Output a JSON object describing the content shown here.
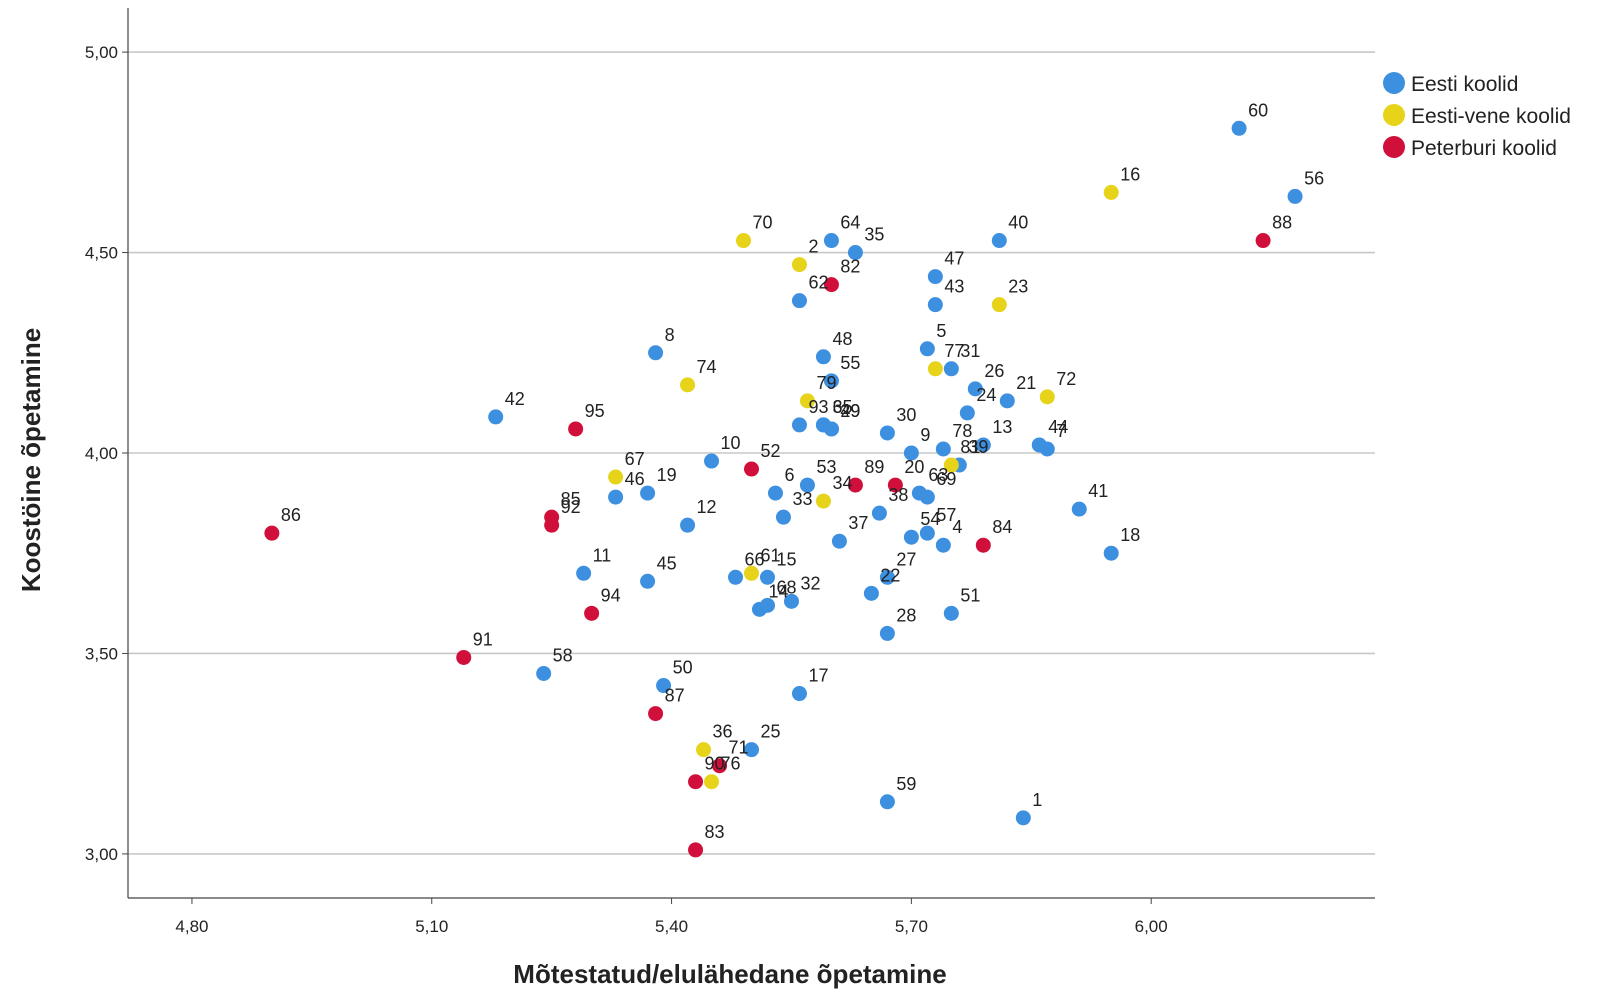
{
  "chart_data": {
    "type": "scatter",
    "xlabel": "Mõtestatud/elulähedane õpetamine",
    "ylabel": "Koostöine õpetamine",
    "xlim": [
      4.72,
      6.28
    ],
    "ylim": [
      2.89,
      5.11
    ],
    "x_ticks": [
      4.8,
      5.1,
      5.4,
      5.7,
      6.0
    ],
    "x_tick_labels": [
      "4,80",
      "5,10",
      "5,40",
      "5,70",
      "6,00"
    ],
    "y_ticks": [
      3.0,
      3.5,
      4.0,
      4.5,
      5.0
    ],
    "y_tick_labels": [
      "3,00",
      "3,50",
      "4,00",
      "4,50",
      "5,00"
    ],
    "grid": "horizontal",
    "legend_position": "top-right",
    "series": [
      {
        "name": "Eesti koolid",
        "color": "#3d8fe0",
        "points": [
          {
            "label": "1",
            "x": 5.84,
            "y": 3.09
          },
          {
            "label": "3",
            "x": 5.59,
            "y": 4.07
          },
          {
            "label": "4",
            "x": 5.74,
            "y": 3.77
          },
          {
            "label": "5",
            "x": 5.72,
            "y": 4.26
          },
          {
            "label": "6",
            "x": 5.53,
            "y": 3.9
          },
          {
            "label": "7",
            "x": 5.87,
            "y": 4.01
          },
          {
            "label": "8",
            "x": 5.38,
            "y": 4.25
          },
          {
            "label": "9",
            "x": 5.7,
            "y": 4.0
          },
          {
            "label": "10",
            "x": 5.45,
            "y": 3.98
          },
          {
            "label": "11",
            "x": 5.29,
            "y": 3.7
          },
          {
            "label": "12",
            "x": 5.42,
            "y": 3.82
          },
          {
            "label": "13",
            "x": 5.79,
            "y": 4.02
          },
          {
            "label": "14",
            "x": 5.51,
            "y": 3.61
          },
          {
            "label": "15",
            "x": 5.52,
            "y": 3.69
          },
          {
            "label": "17",
            "x": 5.56,
            "y": 3.4
          },
          {
            "label": "18",
            "x": 5.95,
            "y": 3.75
          },
          {
            "label": "19",
            "x": 5.37,
            "y": 3.9
          },
          {
            "label": "21",
            "x": 5.82,
            "y": 4.13
          },
          {
            "label": "22",
            "x": 5.65,
            "y": 3.65
          },
          {
            "label": "24",
            "x": 5.77,
            "y": 4.1
          },
          {
            "label": "25",
            "x": 5.5,
            "y": 3.26
          },
          {
            "label": "26",
            "x": 5.78,
            "y": 4.16
          },
          {
            "label": "27",
            "x": 5.67,
            "y": 3.69
          },
          {
            "label": "28",
            "x": 5.67,
            "y": 3.55
          },
          {
            "label": "29",
            "x": 5.6,
            "y": 4.06
          },
          {
            "label": "30",
            "x": 5.67,
            "y": 4.05
          },
          {
            "label": "31",
            "x": 5.75,
            "y": 4.21
          },
          {
            "label": "32",
            "x": 5.55,
            "y": 3.63
          },
          {
            "label": "33",
            "x": 5.54,
            "y": 3.84
          },
          {
            "label": "35",
            "x": 5.63,
            "y": 4.5
          },
          {
            "label": "37",
            "x": 5.61,
            "y": 3.78
          },
          {
            "label": "38",
            "x": 5.66,
            "y": 3.85
          },
          {
            "label": "39",
            "x": 5.76,
            "y": 3.97
          },
          {
            "label": "40",
            "x": 5.81,
            "y": 4.53
          },
          {
            "label": "41",
            "x": 5.91,
            "y": 3.86
          },
          {
            "label": "43",
            "x": 5.73,
            "y": 4.37
          },
          {
            "label": "44",
            "x": 5.86,
            "y": 4.02
          },
          {
            "label": "45",
            "x": 5.37,
            "y": 3.68
          },
          {
            "label": "46",
            "x": 5.33,
            "y": 3.89
          },
          {
            "label": "47",
            "x": 5.73,
            "y": 4.44
          },
          {
            "label": "48",
            "x": 5.59,
            "y": 4.24
          },
          {
            "label": "50",
            "x": 5.39,
            "y": 3.42
          },
          {
            "label": "51",
            "x": 5.75,
            "y": 3.6
          },
          {
            "label": "53",
            "x": 5.57,
            "y": 3.92
          },
          {
            "label": "54",
            "x": 5.7,
            "y": 3.79
          },
          {
            "label": "55",
            "x": 5.6,
            "y": 4.18
          },
          {
            "label": "56",
            "x": 6.18,
            "y": 4.64
          },
          {
            "label": "57",
            "x": 5.72,
            "y": 3.8
          },
          {
            "label": "58",
            "x": 5.24,
            "y": 3.45
          },
          {
            "label": "59",
            "x": 5.67,
            "y": 3.13
          },
          {
            "label": "60",
            "x": 6.11,
            "y": 4.81
          },
          {
            "label": "62",
            "x": 5.56,
            "y": 4.38
          },
          {
            "label": "63",
            "x": 5.71,
            "y": 3.9
          },
          {
            "label": "64",
            "x": 5.6,
            "y": 4.53
          },
          {
            "label": "65",
            "x": 5.59,
            "y": 4.07
          },
          {
            "label": "66",
            "x": 5.48,
            "y": 3.69
          },
          {
            "label": "68",
            "x": 5.52,
            "y": 3.62
          },
          {
            "label": "69",
            "x": 5.72,
            "y": 3.89
          },
          {
            "label": "78",
            "x": 5.74,
            "y": 4.01
          },
          {
            "label": "93",
            "x": 5.56,
            "y": 4.07
          }
        ]
      },
      {
        "name": "Eesti-vene koolid",
        "color": "#e6d31a",
        "points": [
          {
            "label": "2",
            "x": 5.56,
            "y": 4.47
          },
          {
            "label": "16",
            "x": 5.95,
            "y": 4.65
          },
          {
            "label": "23",
            "x": 5.81,
            "y": 4.37
          },
          {
            "label": "34",
            "x": 5.59,
            "y": 3.88
          },
          {
            "label": "36",
            "x": 5.44,
            "y": 3.26
          },
          {
            "label": "61",
            "x": 5.5,
            "y": 3.7
          },
          {
            "label": "67",
            "x": 5.33,
            "y": 3.94
          },
          {
            "label": "70",
            "x": 5.49,
            "y": 4.53
          },
          {
            "label": "72",
            "x": 5.87,
            "y": 4.14
          },
          {
            "label": "74",
            "x": 5.42,
            "y": 4.17
          },
          {
            "label": "76",
            "x": 5.45,
            "y": 3.18
          },
          {
            "label": "77",
            "x": 5.73,
            "y": 4.21
          },
          {
            "label": "79",
            "x": 5.57,
            "y": 4.13
          },
          {
            "label": "81",
            "x": 5.75,
            "y": 3.97
          }
        ]
      },
      {
        "name": "Peterburi koolid",
        "color": "#d0103a",
        "points": [
          {
            "label": "20",
            "x": 5.68,
            "y": 3.92
          },
          {
            "label": "52",
            "x": 5.5,
            "y": 3.96
          },
          {
            "label": "71",
            "x": 5.46,
            "y": 3.22
          },
          {
            "label": "82",
            "x": 5.6,
            "y": 4.42
          },
          {
            "label": "83",
            "x": 5.43,
            "y": 3.01
          },
          {
            "label": "84",
            "x": 5.79,
            "y": 3.77
          },
          {
            "label": "85",
            "x": 5.25,
            "y": 3.84
          },
          {
            "label": "86",
            "x": 4.9,
            "y": 3.8
          },
          {
            "label": "87",
            "x": 5.38,
            "y": 3.35
          },
          {
            "label": "88",
            "x": 6.14,
            "y": 4.53
          },
          {
            "label": "89",
            "x": 5.63,
            "y": 3.92
          },
          {
            "label": "90",
            "x": 5.43,
            "y": 3.18
          },
          {
            "label": "91",
            "x": 5.14,
            "y": 3.49
          },
          {
            "label": "92",
            "x": 5.25,
            "y": 3.82
          },
          {
            "label": "94",
            "x": 5.3,
            "y": 3.6
          },
          {
            "label": "95",
            "x": 5.28,
            "y": 4.06
          }
        ]
      },
      {
        "name": "",
        "color": "#3d8fe0",
        "points": [
          {
            "label": "42",
            "x": 5.18,
            "y": 4.09
          },
          {
            "label": "49",
            "x": 5.6,
            "y": 4.06
          }
        ]
      }
    ]
  }
}
